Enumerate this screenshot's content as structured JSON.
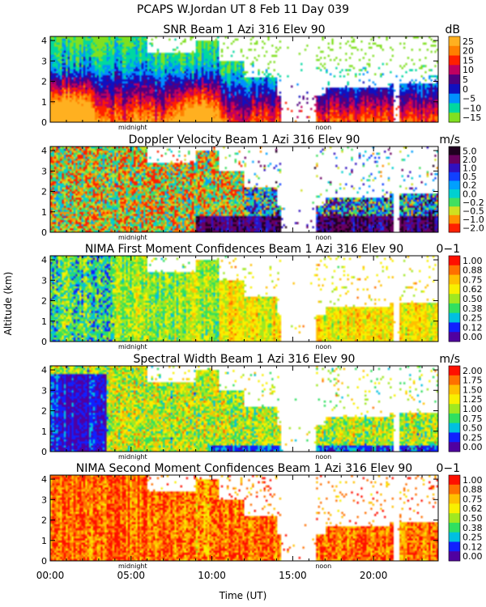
{
  "figure": {
    "title": "PCAPS W.Jordan UT   8 Feb 11 Day 039",
    "xlabel": "Time (UT)",
    "ylabel": "Altitude (km)",
    "midnight_label": "midnight",
    "noon_label": "noon"
  },
  "chart_data": [
    {
      "type": "heatmap",
      "title": "SNR Beam 1 Azi 316 Elev 90",
      "unit": "dB",
      "x_range": [
        0,
        24
      ],
      "x_ticks": [
        0,
        5,
        10,
        15,
        20
      ],
      "x_tick_labels": [
        "00:00",
        "05:00",
        "10:00",
        "15:00",
        "20:00"
      ],
      "ylim": [
        0,
        4.2
      ],
      "y_ticks": [
        0,
        1,
        2,
        3,
        4
      ],
      "y_tick_labels": [
        "0",
        "1",
        "2",
        "3",
        "4"
      ],
      "color_levels": [
        "25",
        "20",
        "15",
        "10",
        "5",
        "0",
        "−5",
        "−10",
        "−15"
      ],
      "colors": [
        "#ffb020",
        "#ff8000",
        "#ff2000",
        "#c00060",
        "#500080",
        "#1010c0",
        "#0090ff",
        "#00d8a0",
        "#80e020"
      ]
    },
    {
      "type": "heatmap",
      "title": "Doppler Velocity Beam 1 Azi 316 Elev 90",
      "unit": "m/s",
      "x_range": [
        0,
        24
      ],
      "x_ticks": [
        0,
        5,
        10,
        15,
        20
      ],
      "x_tick_labels": [
        "00:00",
        "05:00",
        "10:00",
        "15:00",
        "20:00"
      ],
      "ylim": [
        0,
        4.2
      ],
      "y_ticks": [
        0,
        1,
        2,
        3,
        4
      ],
      "y_tick_labels": [
        "0",
        "1",
        "2",
        "3",
        "4"
      ],
      "color_levels": [
        "5.0",
        "2.0",
        "1.0",
        "0.5",
        "0.2",
        "0.0",
        "−0.2",
        "−0.5",
        "−1.0",
        "−2.0"
      ],
      "colors": [
        "#200020",
        "#6a0060",
        "#3010c0",
        "#1040ff",
        "#00a0ff",
        "#00d0d0",
        "#40e060",
        "#d0e020",
        "#ff9000",
        "#ff2000"
      ]
    },
    {
      "type": "heatmap",
      "title": "NIMA First Moment Confidences Beam 1 Azi 316 Elev 90",
      "unit": "0−1",
      "x_range": [
        0,
        24
      ],
      "x_ticks": [
        0,
        5,
        10,
        15,
        20
      ],
      "x_tick_labels": [
        "00:00",
        "05:00",
        "10:00",
        "15:00",
        "20:00"
      ],
      "ylim": [
        0,
        4.2
      ],
      "y_ticks": [
        0,
        1,
        2,
        3,
        4
      ],
      "y_tick_labels": [
        "0",
        "1",
        "2",
        "3",
        "4"
      ],
      "color_levels": [
        "1.00",
        "0.88",
        "0.75",
        "0.62",
        "0.50",
        "0.38",
        "0.25",
        "0.12",
        "0.00"
      ],
      "colors": [
        "#ff1000",
        "#ff7000",
        "#ffc000",
        "#f8f000",
        "#a0e820",
        "#30e060",
        "#00c0e0",
        "#1020ff",
        "#5000a0"
      ]
    },
    {
      "type": "heatmap",
      "title": "Spectral Width Beam 1 Azi 316 Elev 90",
      "unit": "m/s",
      "x_range": [
        0,
        24
      ],
      "x_ticks": [
        0,
        5,
        10,
        15,
        20
      ],
      "x_tick_labels": [
        "00:00",
        "05:00",
        "10:00",
        "15:00",
        "20:00"
      ],
      "ylim": [
        0,
        4.2
      ],
      "y_ticks": [
        0,
        1,
        2,
        3,
        4
      ],
      "y_tick_labels": [
        "0",
        "1",
        "2",
        "3",
        "4"
      ],
      "color_levels": [
        "2.00",
        "1.75",
        "1.50",
        "1.25",
        "1.00",
        "0.75",
        "0.50",
        "0.25",
        "0.00"
      ],
      "colors": [
        "#ff1000",
        "#ff7000",
        "#ffc000",
        "#f8f000",
        "#a0e820",
        "#30e060",
        "#00c0e0",
        "#1020ff",
        "#5000a0"
      ]
    },
    {
      "type": "heatmap",
      "title": "NIMA Second Moment Confidences Beam 1 Azi 316 Elev 90",
      "unit": "0−1",
      "x_range": [
        0,
        24
      ],
      "x_ticks": [
        0,
        5,
        10,
        15,
        20
      ],
      "x_tick_labels": [
        "00:00",
        "05:00",
        "10:00",
        "15:00",
        "20:00"
      ],
      "ylim": [
        0,
        4.2
      ],
      "y_ticks": [
        0,
        1,
        2,
        3,
        4
      ],
      "y_tick_labels": [
        "0",
        "1",
        "2",
        "3",
        "4"
      ],
      "color_levels": [
        "1.00",
        "0.88",
        "0.75",
        "0.62",
        "0.50",
        "0.38",
        "0.25",
        "0.12",
        "0.00"
      ],
      "colors": [
        "#ff1000",
        "#ff7000",
        "#ffc000",
        "#f8f000",
        "#a0e820",
        "#30e060",
        "#00c0e0",
        "#1020ff",
        "#5000a0"
      ]
    }
  ]
}
